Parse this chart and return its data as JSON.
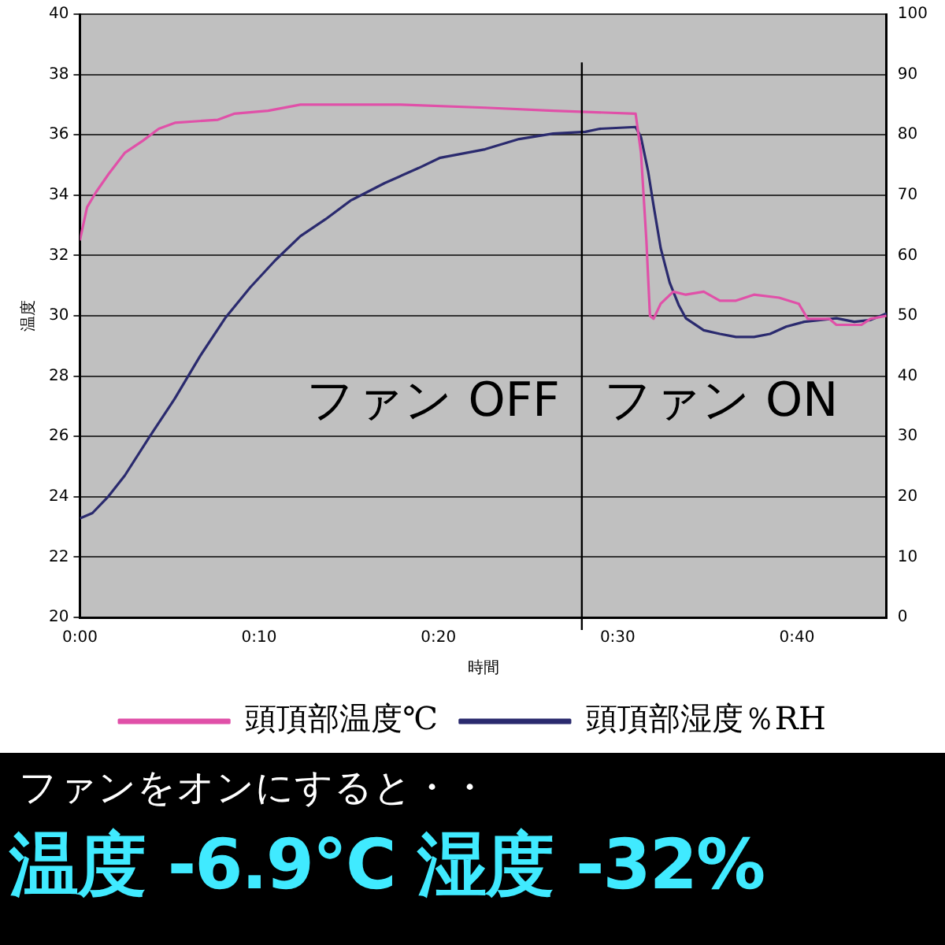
{
  "chart_data": {
    "type": "line",
    "xlabel": "時間",
    "ylabel": "温度",
    "xlim": [
      0,
      45
    ],
    "xticks": [
      {
        "value": 0,
        "label": "0:00"
      },
      {
        "value": 10,
        "label": "0:10"
      },
      {
        "value": 20,
        "label": "0:20"
      },
      {
        "value": 30,
        "label": "0:30"
      },
      {
        "value": 40,
        "label": "0:40"
      }
    ],
    "ylim": [
      20,
      40
    ],
    "yticks": [
      20,
      22,
      24,
      26,
      28,
      30,
      32,
      34,
      36,
      38,
      40
    ],
    "y2lim": [
      0,
      100
    ],
    "y2ticks": [
      0,
      10,
      20,
      30,
      40,
      50,
      60,
      70,
      80,
      90,
      100
    ],
    "grid": "y",
    "legend": "bottom",
    "ref_lines": [
      {
        "axis": "x",
        "value": 28,
        "color": "#000000"
      }
    ],
    "annotations": [
      "ファン OFF",
      "ファン ON",
      "ファンをオンにすると・・",
      "温度 -6.9°C 湿度 -32%"
    ],
    "series": [
      {
        "name": "頭頂部温度℃",
        "color": "#e050a8",
        "x": [
          0,
          0.4,
          0.9,
          1.6,
          2.5,
          3.5,
          4.4,
          5.3,
          7.7,
          8.6,
          10.5,
          12.3,
          17.9,
          22.6,
          26.4,
          31.0,
          31.3,
          31.6,
          31.8,
          32.0,
          32.4,
          33.1,
          33.8,
          34.8,
          35.7,
          36.6,
          37.6,
          39.0,
          40.1,
          40.6,
          41.8,
          42.2,
          43.6,
          44.1,
          45.0
        ],
        "values": [
          32.5,
          33.6,
          34.1,
          34.7,
          35.4,
          35.8,
          36.2,
          36.4,
          36.5,
          36.7,
          36.8,
          37.0,
          37.0,
          36.9,
          36.8,
          36.7,
          35.4,
          32.5,
          30.0,
          29.9,
          30.4,
          30.8,
          30.7,
          30.8,
          30.5,
          30.5,
          30.7,
          30.6,
          30.4,
          29.9,
          29.9,
          29.7,
          29.7,
          29.9,
          30.0
        ]
      },
      {
        "name": "頭頂部湿度％RH",
        "color": "#2a2a6e",
        "axis": "y2",
        "x": [
          0,
          0.7,
          1.6,
          2.5,
          3.9,
          5.3,
          6.7,
          8.1,
          9.5,
          10.9,
          12.3,
          13.7,
          15.1,
          17.0,
          18.9,
          20.1,
          22.6,
          24.5,
          26.4,
          28.2,
          29.0,
          31.0,
          31.3,
          31.7,
          32.0,
          32.4,
          32.9,
          33.4,
          33.8,
          34.8,
          35.7,
          36.6,
          37.6,
          38.5,
          39.4,
          40.4,
          41.3,
          42.2,
          43.2,
          44.1,
          45.0
        ],
        "values": [
          16.4,
          17.3,
          20.1,
          23.5,
          30.0,
          36.3,
          43.3,
          49.6,
          54.7,
          59.2,
          63.2,
          66.0,
          69.1,
          72.0,
          74.5,
          76.2,
          77.6,
          79.3,
          80.2,
          80.5,
          81.0,
          81.3,
          79.6,
          73.9,
          68.3,
          61.2,
          55.5,
          51.8,
          49.6,
          47.6,
          47.0,
          46.5,
          46.5,
          47.0,
          48.2,
          49.0,
          49.3,
          49.6,
          49.0,
          49.3,
          50.4
        ]
      }
    ]
  }
}
